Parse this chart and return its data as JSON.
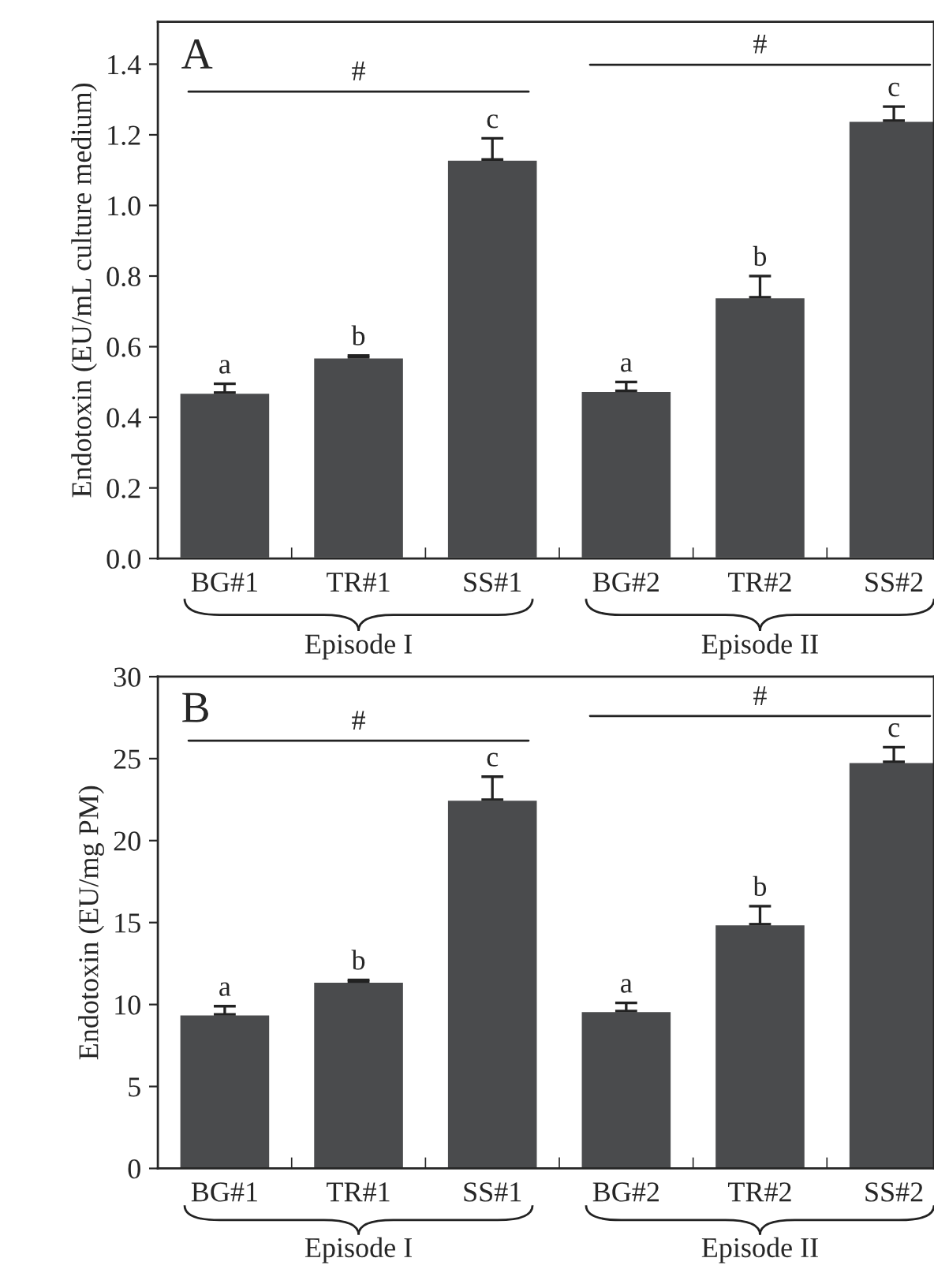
{
  "chart_data": [
    {
      "type": "bar",
      "ylabel": "Endotoxin (EU/mL culture medium)",
      "categories": [
        "BG#1",
        "TR#1",
        "SS#1",
        "BG#2",
        "TR#2",
        "SS#2"
      ],
      "values": [
        0.47,
        0.57,
        1.13,
        0.475,
        0.74,
        1.24
      ],
      "color": "#4a4b4d",
      "errors": [
        [
          0.47,
          0.495
        ],
        [
          0.57,
          0.575
        ],
        [
          1.13,
          1.19
        ],
        [
          0.475,
          0.5
        ],
        [
          0.74,
          0.8
        ],
        [
          1.24,
          1.28
        ]
      ],
      "ylim": [
        0,
        1.52
      ],
      "yticks": [
        {
          "value": 0,
          "label": "0.0"
        },
        0.2,
        0.4,
        0.6,
        0.8,
        {
          "value": 1,
          "label": "1.0"
        },
        1.2,
        1.4
      ],
      "grid": false,
      "legend": false,
      "annotations": [
        "A",
        "#",
        "#",
        {
          "text": "a",
          "x": "BG#1",
          "y": 0.495
        },
        {
          "text": "b",
          "x": "TR#1",
          "y": 0.575
        },
        {
          "text": "c",
          "x": "SS#1",
          "y": 1.19
        },
        {
          "text": "a",
          "x": "BG#2",
          "y": 0.5
        },
        {
          "text": "b",
          "x": "TR#2",
          "y": 0.8
        },
        {
          "text": "c",
          "x": "SS#2",
          "y": 1.28
        },
        "Episode I",
        "Episode II"
      ]
    },
    {
      "type": "bar",
      "ylabel": "Endotoxin (EU/mg PM)",
      "categories": [
        "BG#1",
        "TR#1",
        "SS#1",
        "BG#2",
        "TR#2",
        "SS#2"
      ],
      "values": [
        9.4,
        11.4,
        22.5,
        9.6,
        14.9,
        24.8
      ],
      "color": "#4a4b4d",
      "errors": [
        [
          9.4,
          9.9
        ],
        [
          11.4,
          11.5
        ],
        [
          22.5,
          23.9
        ],
        [
          9.6,
          10.1
        ],
        [
          14.9,
          16.0
        ],
        [
          24.8,
          25.7
        ]
      ],
      "ylim": [
        0,
        30
      ],
      "yticks": [
        0,
        5,
        10,
        15,
        20,
        25,
        30
      ],
      "grid": false,
      "legend": false,
      "annotations": [
        "B",
        "#",
        "#",
        {
          "text": "a",
          "x": "BG#1",
          "y": 9.9
        },
        {
          "text": "b",
          "x": "TR#1",
          "y": 11.5
        },
        {
          "text": "c",
          "x": "SS#1",
          "y": 23.9
        },
        {
          "text": "a",
          "x": "BG#2",
          "y": 10.1
        },
        {
          "text": "b",
          "x": "TR#2",
          "y": 16.0
        },
        {
          "text": "c",
          "x": "SS#2",
          "y": 25.7
        },
        "Episode I",
        "Episode II"
      ]
    }
  ]
}
